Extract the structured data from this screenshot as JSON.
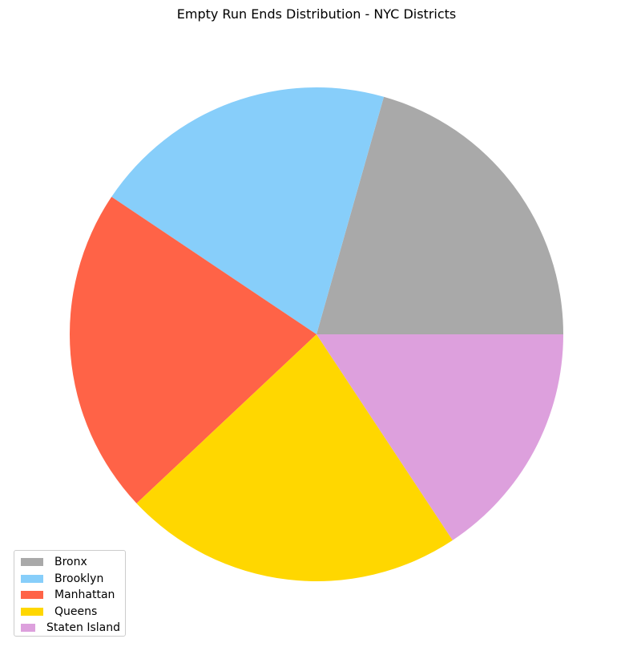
{
  "chart_data": {
    "type": "pie",
    "title": "Empty Run Ends Distribution - NYC Districts",
    "categories": [
      "Bronx",
      "Brooklyn",
      "Manhattan",
      "Queens",
      "Staten Island"
    ],
    "values": [
      20.6,
      20.0,
      21.4,
      22.3,
      15.7
    ],
    "colors": [
      "#a9a9a9",
      "#87cefa",
      "#ff6347",
      "#ffd700",
      "#dda0dd"
    ],
    "start_angle_deg": 0,
    "direction": "counterclockwise",
    "legend": "lower-left"
  }
}
